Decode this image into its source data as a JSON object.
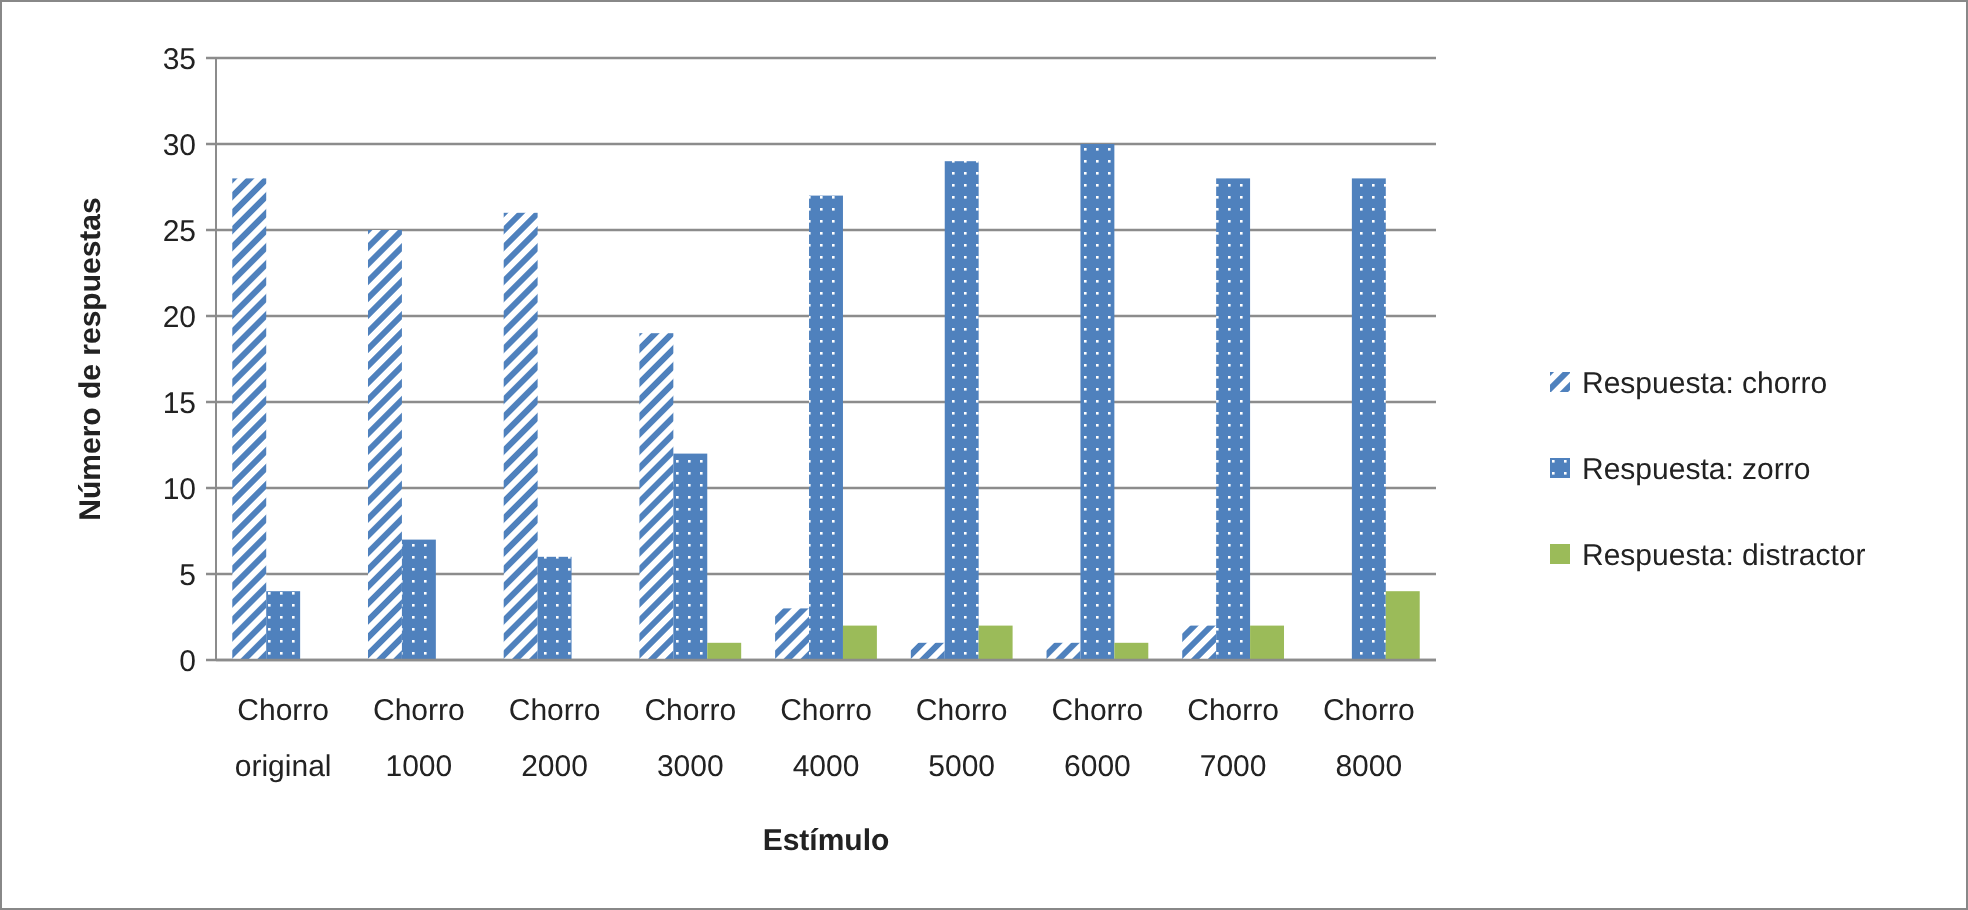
{
  "chart_data": {
    "type": "bar",
    "xlabel": "Estímulo",
    "ylabel": "Número de respuestas",
    "categories": [
      "Chorro original",
      "Chorro 1000",
      "Chorro 2000",
      "Chorro 3000",
      "Chorro 4000",
      "Chorro 5000",
      "Chorro 6000",
      "Chorro 7000",
      "Chorro 8000"
    ],
    "series": [
      {
        "name": "Respuesta: chorro",
        "color": "#4f81bd",
        "values": [
          28,
          25,
          26,
          19,
          3,
          1,
          1,
          2,
          0
        ]
      },
      {
        "name": "Respuesta: zorro",
        "color": "#4f81bd",
        "values": [
          4,
          7,
          6,
          12,
          27,
          29,
          30,
          28,
          28
        ]
      },
      {
        "name": "Respuesta: distractor",
        "color": "#9bbb59",
        "values": [
          0,
          0,
          0,
          1,
          2,
          2,
          1,
          2,
          4
        ]
      }
    ],
    "ylim": [
      0,
      35
    ],
    "yticks": [
      0,
      5,
      10,
      15,
      20,
      25,
      30,
      35
    ],
    "grid": "y",
    "legend": "right"
  }
}
